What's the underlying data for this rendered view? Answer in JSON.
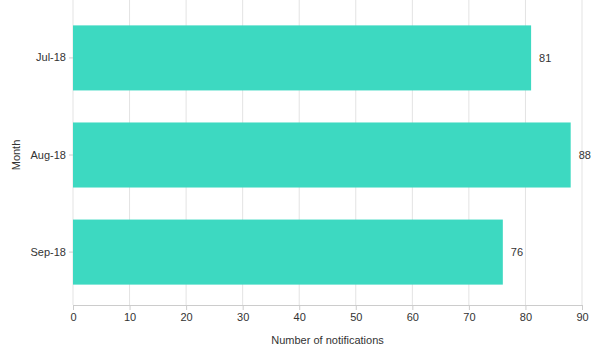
{
  "chart_data": {
    "type": "bar",
    "orientation": "horizontal",
    "xlabel": "Number of notifications",
    "ylabel": "Month",
    "categories": [
      "Jul-18",
      "Aug-18",
      "Sep-18"
    ],
    "values": [
      81,
      88,
      76
    ],
    "color": "#3dd9c1",
    "xlim": [
      0,
      90
    ],
    "xticks": [
      0,
      10,
      20,
      30,
      40,
      50,
      60,
      70,
      80,
      90
    ],
    "grid": true,
    "data_labels": true
  }
}
